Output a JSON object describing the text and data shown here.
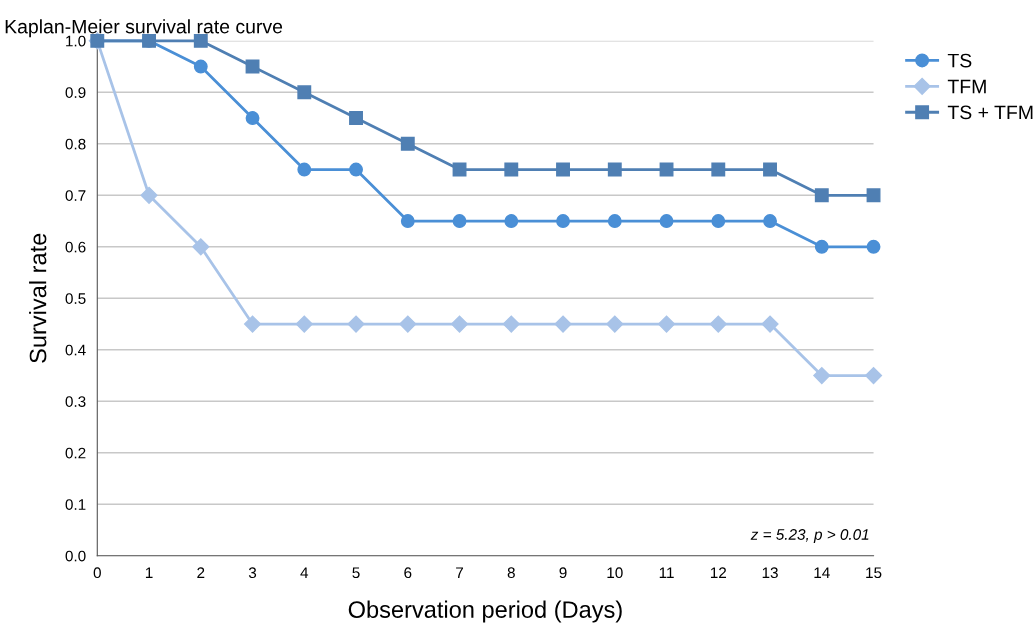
{
  "chart_data": {
    "type": "line",
    "title": "Kaplan-Meier survival rate curve",
    "xlabel": "Observation period (Days)",
    "ylabel": "Survival rate",
    "x": [
      0,
      1,
      2,
      3,
      4,
      5,
      6,
      7,
      8,
      9,
      10,
      11,
      12,
      13,
      14,
      15
    ],
    "xlim": [
      0,
      15
    ],
    "xticks": [
      0,
      1,
      2,
      3,
      4,
      5,
      6,
      7,
      8,
      9,
      10,
      11,
      12,
      13,
      14,
      15
    ],
    "ylim": [
      0,
      1.0
    ],
    "yticks": [
      {
        "value": 0,
        "label": "0.0"
      },
      0.1,
      0.2,
      0.3,
      0.4,
      0.5,
      0.6,
      0.7,
      0.8,
      0.9,
      {
        "value": 1.0,
        "label": "1.0"
      }
    ],
    "grid": "y",
    "legend": "top right",
    "line_style": "solid",
    "annotations": [
      "z = 5.23, p > 0.01"
    ],
    "series": [
      {
        "name": "TS",
        "color": "#4a8fd6",
        "marker": "circle",
        "values": [
          1.0,
          1.0,
          0.95,
          0.85,
          0.75,
          0.75,
          0.65,
          0.65,
          0.65,
          0.65,
          0.65,
          0.65,
          0.65,
          0.65,
          0.6,
          0.6
        ]
      },
      {
        "name": "TFM",
        "color": "#a8c3e8",
        "marker": "diamond",
        "values": [
          1.0,
          0.7,
          0.6,
          0.45,
          0.45,
          0.45,
          0.45,
          0.45,
          0.45,
          0.45,
          0.45,
          0.45,
          0.45,
          0.45,
          0.35,
          0.35
        ]
      },
      {
        "name": "TS + TFM",
        "color": "#4f7fb3",
        "marker": "square",
        "values": [
          1.0,
          1.0,
          1.0,
          0.95,
          0.9,
          0.85,
          0.8,
          0.75,
          0.75,
          0.75,
          0.75,
          0.75,
          0.75,
          0.75,
          0.7,
          0.7
        ]
      }
    ]
  }
}
